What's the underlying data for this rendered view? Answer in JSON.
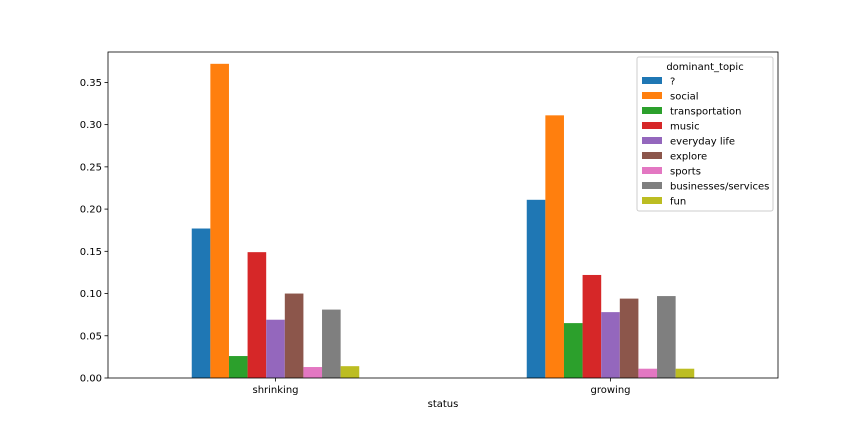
{
  "chart_data": {
    "type": "bar",
    "title": "",
    "xlabel": "status",
    "ylabel": "",
    "categories": [
      "shrinking",
      "growing"
    ],
    "ylim": [
      0,
      0.386
    ],
    "yticks": [
      "0.00",
      "0.05",
      "0.10",
      "0.15",
      "0.20",
      "0.25",
      "0.30",
      "0.35"
    ],
    "grid": false,
    "legend": {
      "title": "dominant_topic",
      "position": "top-right"
    },
    "series": [
      {
        "name": "?",
        "color": "#1f77b4",
        "values": [
          0.177,
          0.211
        ]
      },
      {
        "name": "social",
        "color": "#ff7f0e",
        "values": [
          0.372,
          0.311
        ]
      },
      {
        "name": "transportation",
        "color": "#2ca02c",
        "values": [
          0.026,
          0.065
        ]
      },
      {
        "name": "music",
        "color": "#d62728",
        "values": [
          0.149,
          0.122
        ]
      },
      {
        "name": "everyday life",
        "color": "#9467bd",
        "values": [
          0.069,
          0.078
        ]
      },
      {
        "name": "explore",
        "color": "#8c564b",
        "values": [
          0.1,
          0.094
        ]
      },
      {
        "name": "sports",
        "color": "#e377c2",
        "values": [
          0.013,
          0.011
        ]
      },
      {
        "name": "businesses/services",
        "color": "#7f7f7f",
        "values": [
          0.081,
          0.097
        ]
      },
      {
        "name": "fun",
        "color": "#bcbd22",
        "values": [
          0.014,
          0.011
        ]
      }
    ]
  }
}
